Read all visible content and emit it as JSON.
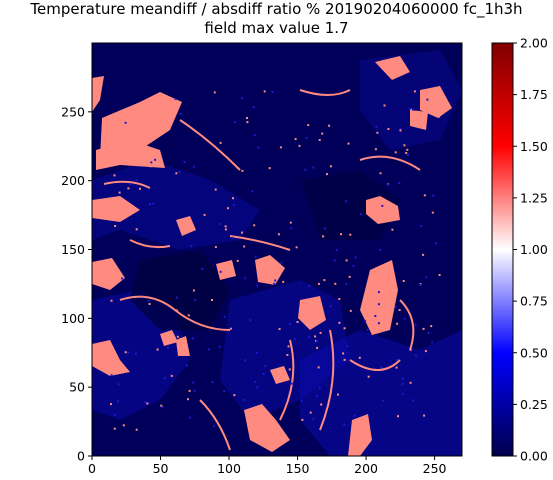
{
  "chart_data": {
    "type": "heatmap",
    "title": "Temperature meandiff / absdiff ratio % 20190204060000 fc_1h3h",
    "subtitle": "field max value 1.7",
    "xlim": [
      0,
      270
    ],
    "ylim": [
      0,
      300
    ],
    "x_ticks": [
      "0",
      "50",
      "100",
      "150",
      "200",
      "250"
    ],
    "y_ticks": [
      "0",
      "50",
      "100",
      "150",
      "200",
      "250"
    ],
    "colorbar": {
      "range": [
        0.0,
        2.0
      ],
      "ticks": [
        "0.00",
        "0.25",
        "0.50",
        "0.75",
        "1.00",
        "1.25",
        "1.50",
        "1.75",
        "2.00"
      ],
      "colormap": "seismic",
      "colors": [
        "#00004c",
        "#0000ff",
        "#ffffff",
        "#ff0000",
        "#800000"
      ]
    },
    "field_max": 1.7,
    "background_value": 0.12,
    "highlight_value": 1.25,
    "grid": false
  }
}
